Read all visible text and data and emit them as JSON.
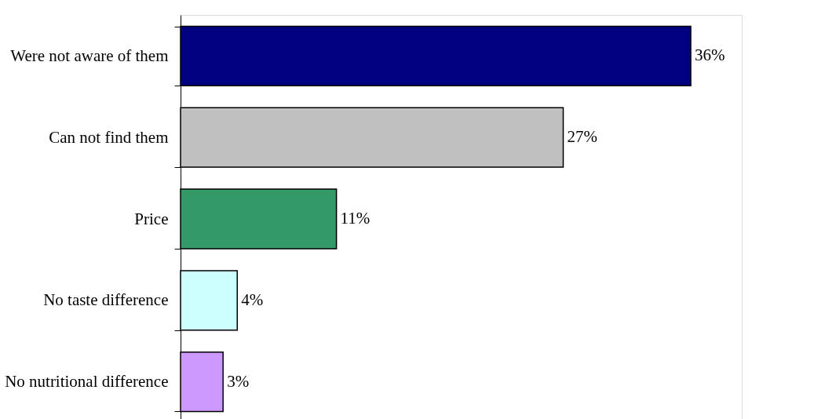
{
  "chart_data": {
    "type": "bar",
    "orientation": "horizontal",
    "categories": [
      "Were not aware of them",
      "Can not find them",
      "Price",
      "No taste difference",
      "No nutritional difference"
    ],
    "values": [
      36,
      27,
      11,
      4,
      3
    ],
    "colors": [
      "#000080",
      "#c0c0c0",
      "#339966",
      "#ccffff",
      "#cc99ff"
    ],
    "value_labels": [
      "36%",
      "27%",
      "11%",
      "4%",
      "3%"
    ],
    "grid": false,
    "legend": false
  }
}
